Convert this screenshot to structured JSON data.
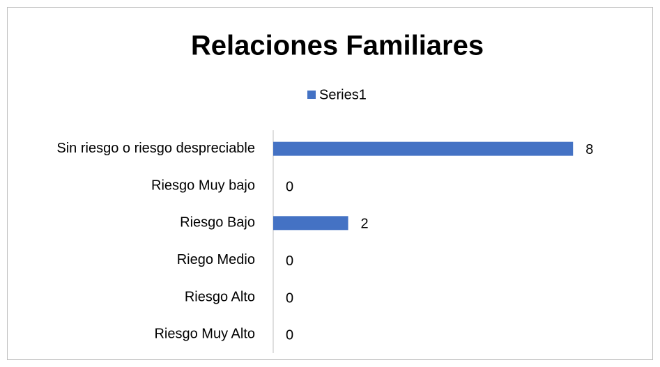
{
  "chart_data": {
    "type": "barh",
    "title": "Relaciones Familiares",
    "categories": [
      "Sin riesgo o riesgo despreciable",
      "Riesgo Muy bajo",
      "Riesgo Bajo",
      "Riego Medio",
      "Riesgo Alto",
      "Riesgo Muy Alto"
    ],
    "series": [
      {
        "name": "Series1",
        "color": "#4472c4",
        "values": [
          8,
          0,
          2,
          0,
          0,
          0
        ]
      }
    ],
    "xlim": [
      0,
      9
    ],
    "legend": "top"
  }
}
